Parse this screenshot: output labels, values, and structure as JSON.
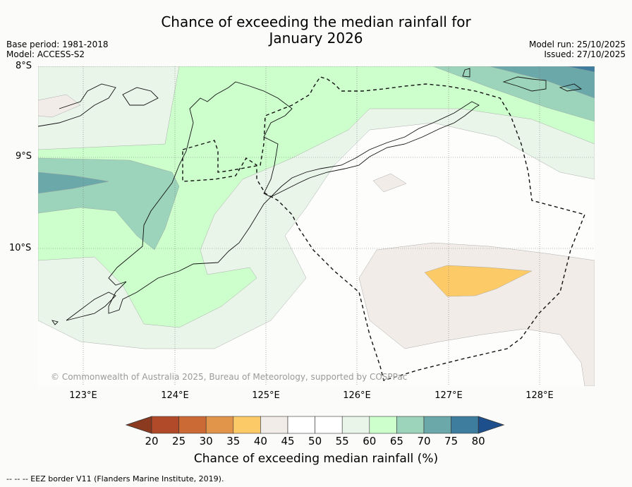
{
  "title_line1": "Chance of exceeding the median rainfall for",
  "title_line2": "January 2026",
  "base_period": "Base period: 1981-2018",
  "model": "Model: ACCESS-S2",
  "model_run": "Model run: 25/10/2025",
  "issued": "Issued: 27/10/2025",
  "lat_labels": [
    "8°S",
    "9°S",
    "10°S"
  ],
  "lon_labels": [
    "123°E",
    "124°E",
    "125°E",
    "126°E",
    "127°E",
    "128°E"
  ],
  "copyright": "© Commonwealth of Australia 2025, Bureau of Meteorology, supported by COSPPac",
  "colorbar": {
    "ticks": [
      "20",
      "25",
      "30",
      "35",
      "40",
      "45",
      "50",
      "55",
      "60",
      "65",
      "70",
      "75",
      "80"
    ],
    "colors": [
      "#8b3a20",
      "#b04a28",
      "#cc6a35",
      "#e0954a",
      "#fccb68",
      "#f1ece7",
      "#ffffff",
      "#ffffff",
      "#eaf5ea",
      "#ccffcc",
      "#9bd3bb",
      "#6aa8a9",
      "#3f7d9e",
      "#1d4f8c"
    ],
    "title": "Chance of exceeding median rainfall (%)"
  },
  "footer": "--  --  -- EEZ border V11 (Flanders Marine Institute, 2019)."
}
